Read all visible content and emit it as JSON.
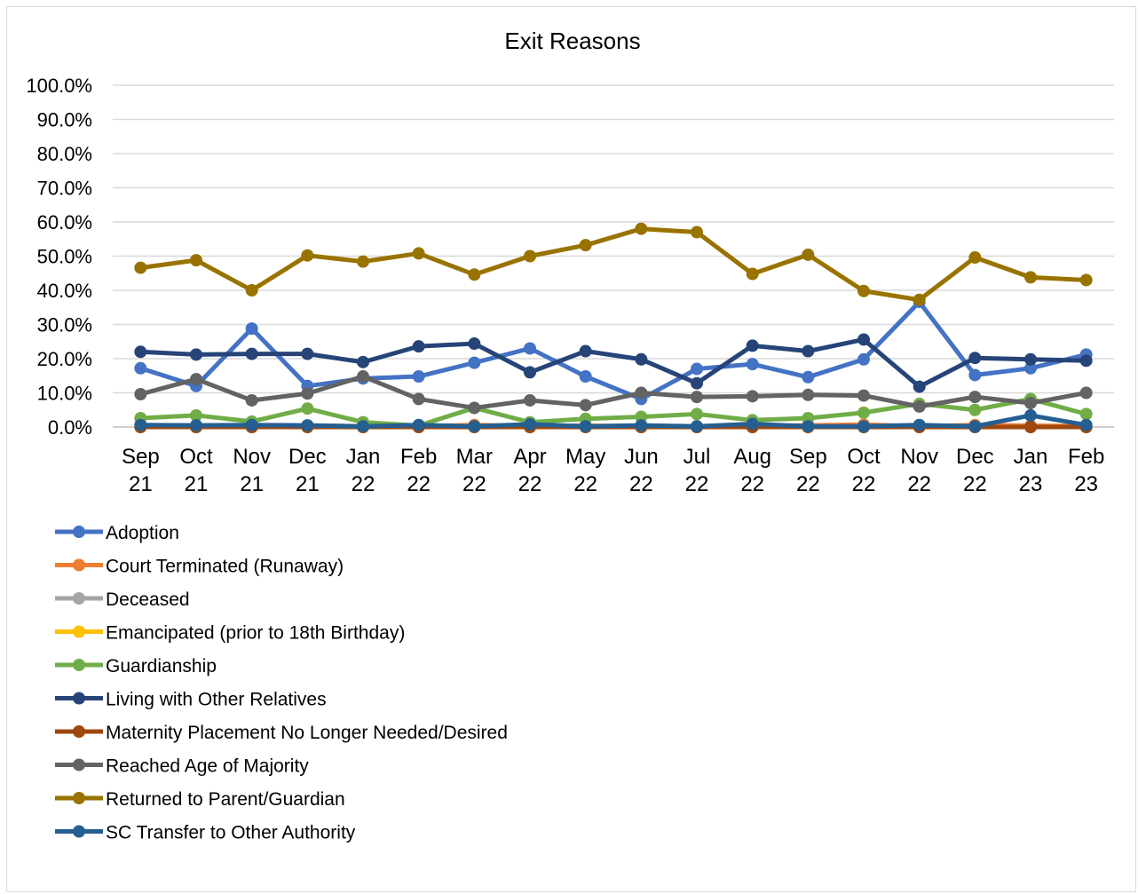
{
  "chart_data": {
    "type": "line",
    "title": "Exit Reasons",
    "xlabel": "",
    "ylabel": "",
    "ylim": [
      0,
      100
    ],
    "y_ticks": [
      "0.0%",
      "10.0%",
      "20.0%",
      "30.0%",
      "40.0%",
      "50.0%",
      "60.0%",
      "70.0%",
      "80.0%",
      "90.0%",
      "100.0%"
    ],
    "grid": "horizontal",
    "legend_position": "bottom-left",
    "categories": [
      [
        "Sep",
        "21"
      ],
      [
        "Oct",
        "21"
      ],
      [
        "Nov",
        "21"
      ],
      [
        "Dec",
        "21"
      ],
      [
        "Jan",
        "22"
      ],
      [
        "Feb",
        "22"
      ],
      [
        "Mar",
        "22"
      ],
      [
        "Apr",
        "22"
      ],
      [
        "May",
        "22"
      ],
      [
        "Jun",
        "22"
      ],
      [
        "Jul",
        "22"
      ],
      [
        "Aug",
        "22"
      ],
      [
        "Sep",
        "22"
      ],
      [
        "Oct",
        "22"
      ],
      [
        "Nov",
        "22"
      ],
      [
        "Dec",
        "22"
      ],
      [
        "Jan",
        "23"
      ],
      [
        "Feb",
        "23"
      ]
    ],
    "series": [
      {
        "name": "Adoption",
        "color": "#4472C4",
        "values": [
          17.2,
          12.0,
          28.8,
          12.0,
          14.2,
          14.8,
          18.8,
          23.0,
          14.8,
          8.2,
          17.0,
          18.4,
          14.6,
          19.8,
          36.6,
          15.2,
          17.2,
          21.2
        ]
      },
      {
        "name": "Court Terminated (Runaway)",
        "color": "#ED7D31",
        "values": [
          0.3,
          0.2,
          0.1,
          0.4,
          0.2,
          0.2,
          0.6,
          0.3,
          0.4,
          0.2,
          0.2,
          0.3,
          0.5,
          0.7,
          0.2,
          0.6,
          0.4,
          0.3
        ]
      },
      {
        "name": "Deceased",
        "color": "#A5A5A5",
        "values": [
          0.1,
          0.0,
          0.0,
          0.2,
          0.0,
          0.0,
          0.0,
          0.0,
          0.0,
          0.0,
          0.0,
          0.0,
          0.0,
          0.0,
          0.0,
          0.0,
          0.0,
          0.0
        ]
      },
      {
        "name": "Emancipated (prior to 18th Birthday)",
        "color": "#FFC000",
        "values": [
          0.0,
          0.0,
          0.0,
          0.0,
          0.0,
          0.0,
          0.0,
          0.0,
          0.0,
          0.0,
          0.0,
          0.0,
          0.0,
          0.0,
          0.0,
          0.0,
          0.0,
          0.0
        ]
      },
      {
        "name": "Guardianship",
        "color": "#70AD47",
        "values": [
          2.6,
          3.4,
          1.6,
          5.4,
          1.4,
          0.4,
          5.6,
          1.4,
          2.4,
          3.0,
          3.8,
          2.0,
          2.6,
          4.2,
          6.8,
          5.0,
          8.2,
          3.8
        ]
      },
      {
        "name": "Living with Other Relatives",
        "color": "#264478",
        "values": [
          22.0,
          21.2,
          21.4,
          21.4,
          19.0,
          23.6,
          24.4,
          16.0,
          22.2,
          19.8,
          12.8,
          23.8,
          22.2,
          25.6,
          11.8,
          20.2,
          19.8,
          19.4
        ]
      },
      {
        "name": "Maternity Placement No Longer Needed/Desired",
        "color": "#9E480E",
        "values": [
          0.0,
          0.0,
          0.0,
          0.0,
          0.0,
          0.0,
          0.0,
          0.0,
          0.0,
          0.0,
          0.0,
          0.0,
          0.0,
          0.0,
          0.0,
          0.0,
          0.0,
          0.0
        ]
      },
      {
        "name": "Reached Age of Majority",
        "color": "#636363",
        "values": [
          9.6,
          14.0,
          7.8,
          9.8,
          14.8,
          8.2,
          5.6,
          7.8,
          6.4,
          10.0,
          8.8,
          9.0,
          9.4,
          9.2,
          6.0,
          8.8,
          7.0,
          10.0
        ]
      },
      {
        "name": "Returned to Parent/Guardian",
        "color": "#997300",
        "values": [
          46.6,
          48.8,
          40.0,
          50.2,
          48.4,
          50.8,
          44.6,
          50.0,
          53.2,
          58.0,
          57.0,
          44.8,
          50.4,
          39.8,
          37.2,
          49.6,
          43.8,
          43.0
        ]
      },
      {
        "name": "SC Transfer to Other Authority",
        "color": "#255E91",
        "values": [
          0.6,
          0.5,
          0.6,
          0.5,
          0.2,
          0.6,
          0.2,
          0.8,
          0.2,
          0.5,
          0.2,
          0.9,
          0.2,
          0.2,
          0.6,
          0.2,
          3.4,
          0.6
        ]
      }
    ]
  }
}
